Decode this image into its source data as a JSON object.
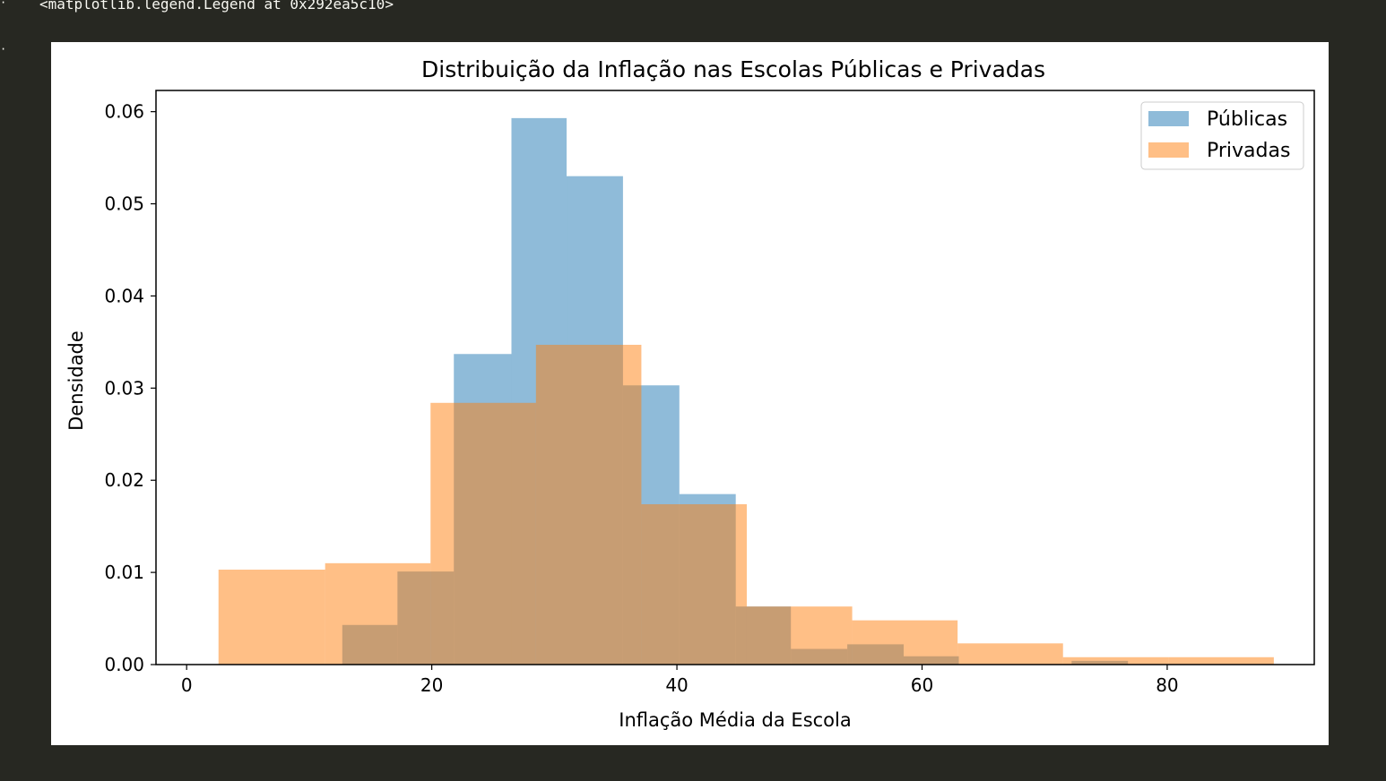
{
  "notebook": {
    "output_text": "<matplotlib.legend.Legend at 0x292ea5c10>"
  },
  "chart_data": {
    "type": "bar",
    "title": "Distribuição da Inflação nas Escolas Públicas e Privadas",
    "xlabel": "Inflação Média da Escola",
    "ylabel": "Densidade",
    "xlim": [
      -2.5,
      92
    ],
    "ylim": [
      0,
      0.0623
    ],
    "x_ticks": [
      0,
      20,
      40,
      60,
      80
    ],
    "y_ticks": [
      0.0,
      0.01,
      0.02,
      0.03,
      0.04,
      0.05,
      0.06
    ],
    "x_tick_labels": [
      "0",
      "20",
      "40",
      "60",
      "80"
    ],
    "y_tick_labels": [
      "0.00",
      "0.01",
      "0.02",
      "0.03",
      "0.04",
      "0.05",
      "0.06"
    ],
    "legend_position": "upper-right",
    "grid": false,
    "series": [
      {
        "name": "Públicas",
        "color": "#1f77b4",
        "alpha": 0.5,
        "bins": [
          {
            "x0": 12.7,
            "x1": 17.2,
            "y": 0.0043
          },
          {
            "x0": 17.2,
            "x1": 21.8,
            "y": 0.0101
          },
          {
            "x0": 21.8,
            "x1": 26.5,
            "y": 0.0337
          },
          {
            "x0": 26.5,
            "x1": 31.0,
            "y": 0.0593
          },
          {
            "x0": 31.0,
            "x1": 35.6,
            "y": 0.053
          },
          {
            "x0": 35.6,
            "x1": 40.2,
            "y": 0.0303
          },
          {
            "x0": 40.2,
            "x1": 44.8,
            "y": 0.0185
          },
          {
            "x0": 44.8,
            "x1": 49.3,
            "y": 0.0063
          },
          {
            "x0": 49.3,
            "x1": 53.9,
            "y": 0.0017
          },
          {
            "x0": 53.9,
            "x1": 58.5,
            "y": 0.0022
          },
          {
            "x0": 58.5,
            "x1": 63.0,
            "y": 0.0009
          },
          {
            "x0": 63.0,
            "x1": 67.6,
            "y": 0.0
          },
          {
            "x0": 67.6,
            "x1": 72.2,
            "y": 0.0
          },
          {
            "x0": 72.2,
            "x1": 76.8,
            "y": 0.0004
          }
        ]
      },
      {
        "name": "Privadas",
        "color": "#ff7f0e",
        "alpha": 0.5,
        "bins": [
          {
            "x0": 2.6,
            "x1": 11.3,
            "y": 0.0103
          },
          {
            "x0": 11.3,
            "x1": 19.9,
            "y": 0.011
          },
          {
            "x0": 19.9,
            "x1": 28.5,
            "y": 0.0284
          },
          {
            "x0": 28.5,
            "x1": 37.1,
            "y": 0.0347
          },
          {
            "x0": 37.1,
            "x1": 45.7,
            "y": 0.0174
          },
          {
            "x0": 45.7,
            "x1": 54.3,
            "y": 0.0063
          },
          {
            "x0": 54.3,
            "x1": 62.9,
            "y": 0.0048
          },
          {
            "x0": 62.9,
            "x1": 71.5,
            "y": 0.0023
          },
          {
            "x0": 71.5,
            "x1": 80.1,
            "y": 0.0008
          },
          {
            "x0": 80.1,
            "x1": 88.7,
            "y": 0.0008
          }
        ]
      }
    ]
  }
}
